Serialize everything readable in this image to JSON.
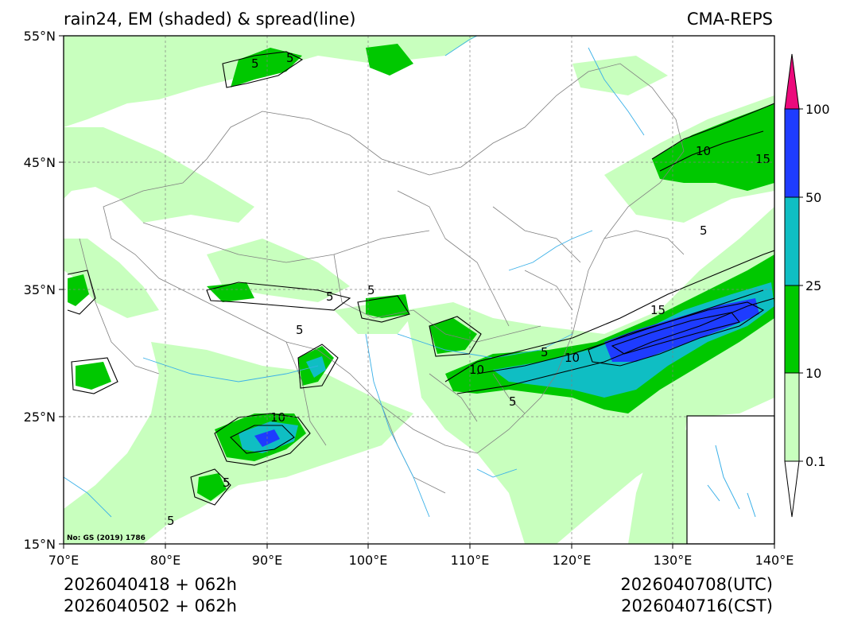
{
  "header": {
    "title": "rain24, EM (shaded) & spread(line)",
    "model": "CMA-REPS"
  },
  "footer": {
    "init_utc": "2026040418  +  062h",
    "init_cst": "2026040502  +  062h",
    "valid_utc": "2026040708(UTC)",
    "valid_cst": "2026040716(CST)"
  },
  "map": {
    "lat_labels": [
      "55°N",
      "45°N",
      "35°N",
      "25°N",
      "15°N"
    ],
    "lon_labels": [
      "70°E",
      "80°E",
      "90°E",
      "100°E",
      "110°E",
      "120°E",
      "130°E",
      "140°E"
    ],
    "approval_no": "No: GS (2019) 1786",
    "extent": {
      "lon": [
        70,
        140
      ],
      "lat": [
        15,
        55
      ]
    },
    "contour_labels": [
      "5",
      "5",
      "10",
      "15",
      "5",
      "10",
      "15",
      "5",
      "5",
      "10",
      "5",
      "5",
      "5",
      "10",
      "5",
      "5"
    ]
  },
  "colorbar": {
    "levels": [
      "100",
      "50",
      "25",
      "10",
      "0.1"
    ],
    "colors": [
      "#ec0a7c",
      "#1e3cff",
      "#0fbec3",
      "#00c800",
      "#c8ffbe",
      "#ffffff"
    ]
  }
}
